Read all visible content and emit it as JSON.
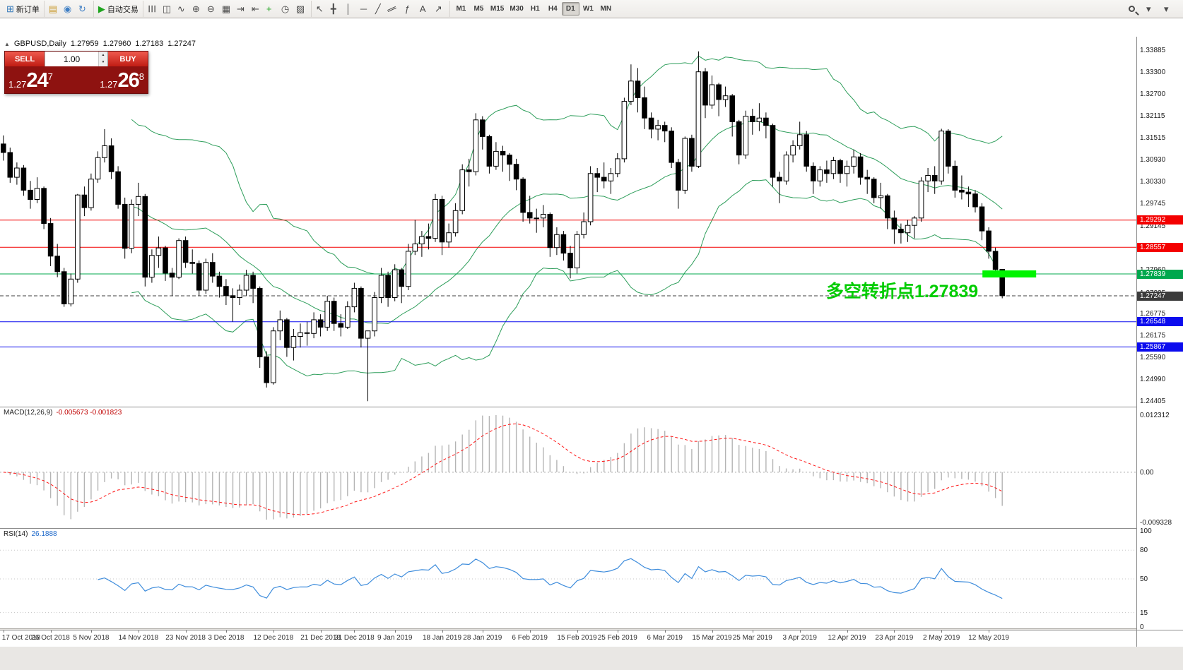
{
  "colors": {
    "bull_candle": "#ffffff",
    "bear_candle": "#000000",
    "candle_outline": "#000000",
    "bollinger": "#2e9e5b",
    "macd_histogram": "#b4b4b4",
    "macd_signal": "#ff1414",
    "rsi_line": "#3f8ddc",
    "resistance_line": "#f40000",
    "support_line": "#0c0cee",
    "pivot_line": "#00a84e",
    "bid_line": "#3c3c3c",
    "highlight_rect": "#00f400",
    "annotation_green": "#00cc00"
  },
  "toolbar": {
    "groups": [
      {
        "items": [
          {
            "name": "new-order-button",
            "glyph": "⊞",
            "color": "#2f76b8",
            "label": "新订单"
          }
        ]
      },
      {
        "items": [
          {
            "name": "charts-dropdown-button",
            "glyph": "▤",
            "color": "#c99a2e"
          },
          {
            "name": "profiles-button",
            "glyph": "◉",
            "color": "#3f7fc4"
          },
          {
            "name": "refresh-button",
            "glyph": "↻",
            "color": "#3f7fc4"
          }
        ]
      },
      {
        "items": [
          {
            "name": "autotrading-button",
            "glyph": "▶",
            "color": "#1fa51f",
            "label": "自动交易"
          }
        ]
      },
      {
        "items": [
          {
            "name": "bar-chart-button",
            "glyph": "☰",
            "rot": "rot90"
          },
          {
            "name": "candlestick-button",
            "glyph": "◫"
          },
          {
            "name": "line-chart-button",
            "glyph": "∿"
          },
          {
            "name": "zoom-in-button",
            "glyph": "⊕"
          },
          {
            "name": "zoom-out-button",
            "glyph": "⊖"
          },
          {
            "name": "tile-windows-button",
            "glyph": "▦"
          },
          {
            "name": "auto-scroll-button",
            "glyph": "⇥"
          },
          {
            "name": "chart-shift-button",
            "glyph": "⇤"
          },
          {
            "name": "indicators-button",
            "glyph": "+",
            "color": "#1fa51f"
          },
          {
            "name": "periods-button",
            "glyph": "◷"
          },
          {
            "name": "templates-button",
            "glyph": "▨"
          }
        ]
      },
      {
        "items": [
          {
            "name": "cursor-button",
            "glyph": "↖"
          },
          {
            "name": "crosshair-button",
            "glyph": "╋"
          },
          {
            "name": "vertical-line-button",
            "glyph": "│"
          },
          {
            "name": "horizontal-line-button",
            "glyph": "─"
          },
          {
            "name": "trendline-button",
            "glyph": "╱"
          },
          {
            "name": "channel-button",
            "glyph": "∥",
            "rot": "rot65"
          },
          {
            "name": "fibonacci-button",
            "glyph": "ƒ"
          },
          {
            "name": "text-button",
            "glyph": "A"
          },
          {
            "name": "arrows-button",
            "glyph": "↗"
          }
        ]
      }
    ],
    "timeframes": [
      "M1",
      "M5",
      "M15",
      "M30",
      "H1",
      "H4",
      "D1",
      "W1",
      "MN"
    ],
    "active_timeframe": "D1",
    "right_items": [
      {
        "name": "search-button",
        "glyph": "mag"
      },
      {
        "name": "toolbar-options-button",
        "glyph": "▾"
      },
      {
        "name": "window-menu-button",
        "glyph": "▾"
      }
    ]
  },
  "chart_header": {
    "collapse_glyph": "▲",
    "symbol": "GBPUSD,Daily",
    "open": "1.27959",
    "high": "1.27960",
    "low": "1.27183",
    "close": "1.27247"
  },
  "trade_panel": {
    "sell_label": "SELL",
    "buy_label": "BUY",
    "volume": "1.00",
    "spin_up": "▲",
    "spin_down": "▼",
    "sell_price": {
      "small": "1.27",
      "big": "24",
      "sup": "7"
    },
    "buy_price": {
      "small": "1.27",
      "big": "26",
      "sup": "8"
    }
  },
  "annotation": {
    "text": "多空转折点1.27839"
  },
  "highlight_rect": {
    "price": 1.27839,
    "width": 76,
    "height": 10
  },
  "hlines": [
    {
      "name": "resistance-line-1",
      "price": 1.29292,
      "label": "1.29292",
      "color": "#f40000",
      "dashed": false
    },
    {
      "name": "resistance-line-2",
      "price": 1.28557,
      "label": "1.28557",
      "color": "#f40000",
      "dashed": false
    },
    {
      "name": "pivot-line",
      "price": 1.27839,
      "label": "1.27839",
      "color": "#00a84e",
      "dashed": false
    },
    {
      "name": "bid-price-line",
      "price": 1.27247,
      "label": "1.27247",
      "color": "#3c3c3c",
      "dashed": true
    },
    {
      "name": "support-line-1",
      "price": 1.26548,
      "label": "1.26548",
      "color": "#0c0cee",
      "dashed": false
    },
    {
      "name": "support-line-2",
      "price": 1.25867,
      "label": "1.25867",
      "color": "#0c0cee",
      "dashed": false
    }
  ],
  "price_axis": {
    "labels": [
      "1.33885",
      "1.33300",
      "1.32700",
      "1.32115",
      "1.31515",
      "1.30930",
      "1.30330",
      "1.29745",
      "1.29145",
      "1.27960",
      "1.27325",
      "1.26775",
      "1.26175",
      "1.25590",
      "1.24990",
      "1.24405"
    ]
  },
  "macd_pane": {
    "title": "MACD(12,26,9)",
    "values": "-0.005673 -0.001823",
    "axis_top": "0.012312",
    "axis_zero": "0.00",
    "axis_bottom": "-0.009328"
  },
  "rsi_pane": {
    "title": "RSI(14)",
    "value": "26.1888",
    "levels": [
      {
        "v": 100,
        "label": "100"
      },
      {
        "v": 80,
        "label": "80"
      },
      {
        "v": 50,
        "label": "50"
      },
      {
        "v": 15,
        "label": "15"
      },
      {
        "v": 0,
        "label": "0"
      }
    ]
  },
  "time_axis": {
    "labels": [
      {
        "label": "17 Oct 2018",
        "i": 0
      },
      {
        "label": "26 Oct 2018",
        "i": 7
      },
      {
        "label": "5 Nov 2018",
        "i": 13
      },
      {
        "label": "14 Nov 2018",
        "i": 20
      },
      {
        "label": "23 Nov 2018",
        "i": 27
      },
      {
        "label": "3 Dec 2018",
        "i": 33
      },
      {
        "label": "12 Dec 2018",
        "i": 40
      },
      {
        "label": "21 Dec 2018",
        "i": 47
      },
      {
        "label": "31 Dec 2018",
        "i": 52
      },
      {
        "label": "9 Jan 2019",
        "i": 58
      },
      {
        "label": "18 Jan 2019",
        "i": 65
      },
      {
        "label": "28 Jan 2019",
        "i": 71
      },
      {
        "label": "6 Feb 2019",
        "i": 78
      },
      {
        "label": "15 Feb 2019",
        "i": 85
      },
      {
        "label": "25 Feb 2019",
        "i": 91
      },
      {
        "label": "6 Mar 2019",
        "i": 98
      },
      {
        "label": "15 Mar 2019",
        "i": 105
      },
      {
        "label": "25 Mar 2019",
        "i": 111
      },
      {
        "label": "3 Apr 2019",
        "i": 118
      },
      {
        "label": "12 Apr 2019",
        "i": 125
      },
      {
        "label": "23 Apr 2019",
        "i": 132
      },
      {
        "label": "2 May 2019",
        "i": 139
      },
      {
        "label": "12 May 2019",
        "i": 146
      }
    ]
  },
  "chart_data": {
    "type": "candlestick",
    "symbol": "GBPUSD",
    "timeframe": "Daily",
    "indicators": {
      "bollinger": {
        "period": 20,
        "deviation": 2
      },
      "macd": {
        "fast": 12,
        "slow": 26,
        "signal": 9,
        "value": -0.005673,
        "signal_value": -0.001823
      },
      "rsi": {
        "period": 14,
        "value": 26.1888
      }
    },
    "ohlc": [
      [
        1.3135,
        1.3158,
        1.309,
        1.3112
      ],
      [
        1.3112,
        1.3125,
        1.303,
        1.3045
      ],
      [
        1.3045,
        1.3085,
        1.3025,
        1.307
      ],
      [
        1.307,
        1.3078,
        1.2995,
        1.301
      ],
      [
        1.301,
        1.3035,
        1.296,
        1.2985
      ],
      [
        1.2985,
        1.3045,
        1.2975,
        1.3015
      ],
      [
        1.3015,
        1.302,
        1.2905,
        1.292
      ],
      [
        1.292,
        1.2935,
        1.2805,
        1.2832
      ],
      [
        1.2832,
        1.2865,
        1.2775,
        1.279
      ],
      [
        1.279,
        1.28,
        1.2695,
        1.2703
      ],
      [
        1.2703,
        1.2785,
        1.2696,
        1.277
      ],
      [
        1.277,
        1.3,
        1.276,
        1.2997
      ],
      [
        1.2997,
        1.302,
        1.294,
        1.2963
      ],
      [
        1.2963,
        1.3055,
        1.2955,
        1.304
      ],
      [
        1.304,
        1.3115,
        1.303,
        1.3098
      ],
      [
        1.3098,
        1.3175,
        1.3085,
        1.313
      ],
      [
        1.313,
        1.315,
        1.304,
        1.306
      ],
      [
        1.306,
        1.3075,
        1.296,
        1.2972
      ],
      [
        1.2972,
        1.299,
        1.2825,
        1.2853
      ],
      [
        1.2853,
        1.2985,
        1.284,
        1.2972
      ],
      [
        1.2972,
        1.303,
        1.294,
        1.2993
      ],
      [
        1.2993,
        1.3,
        1.275,
        1.2775
      ],
      [
        1.2775,
        1.285,
        1.276,
        1.2834
      ],
      [
        1.2834,
        1.2885,
        1.28,
        1.2854
      ],
      [
        1.2854,
        1.286,
        1.2765,
        1.2786
      ],
      [
        1.2786,
        1.28,
        1.2725,
        1.2775
      ],
      [
        1.2775,
        1.288,
        1.277,
        1.2874
      ],
      [
        1.2874,
        1.2885,
        1.28,
        1.2815
      ],
      [
        1.2815,
        1.285,
        1.2785,
        1.2812
      ],
      [
        1.2812,
        1.282,
        1.2725,
        1.274
      ],
      [
        1.274,
        1.2825,
        1.273,
        1.2815
      ],
      [
        1.2815,
        1.284,
        1.276,
        1.2778
      ],
      [
        1.2778,
        1.279,
        1.272,
        1.275
      ],
      [
        1.275,
        1.277,
        1.27,
        1.2725
      ],
      [
        1.2725,
        1.2745,
        1.2655,
        1.272
      ],
      [
        1.272,
        1.2755,
        1.27,
        1.274
      ],
      [
        1.274,
        1.2795,
        1.2725,
        1.278
      ],
      [
        1.278,
        1.279,
        1.2705,
        1.2745
      ],
      [
        1.2745,
        1.275,
        1.253,
        1.256
      ],
      [
        1.256,
        1.2575,
        1.2477,
        1.249
      ],
      [
        1.249,
        1.264,
        1.2485,
        1.263
      ],
      [
        1.263,
        1.2685,
        1.2605,
        1.266
      ],
      [
        1.266,
        1.2665,
        1.256,
        1.2585
      ],
      [
        1.2585,
        1.2635,
        1.255,
        1.2615
      ],
      [
        1.2615,
        1.265,
        1.2585,
        1.2625
      ],
      [
        1.2625,
        1.2655,
        1.259,
        1.2623
      ],
      [
        1.2623,
        1.268,
        1.261,
        1.266
      ],
      [
        1.266,
        1.2675,
        1.2615,
        1.264
      ],
      [
        1.264,
        1.2725,
        1.263,
        1.271
      ],
      [
        1.271,
        1.272,
        1.263,
        1.265
      ],
      [
        1.265,
        1.2675,
        1.2615,
        1.264
      ],
      [
        1.264,
        1.271,
        1.2635,
        1.2695
      ],
      [
        1.2695,
        1.276,
        1.268,
        1.2745
      ],
      [
        1.2745,
        1.275,
        1.2585,
        1.261
      ],
      [
        1.261,
        1.2615,
        1.244,
        1.263
      ],
      [
        1.263,
        1.2735,
        1.2615,
        1.272
      ],
      [
        1.272,
        1.28,
        1.2705,
        1.278
      ],
      [
        1.278,
        1.279,
        1.2695,
        1.272
      ],
      [
        1.272,
        1.281,
        1.271,
        1.2795
      ],
      [
        1.2795,
        1.28,
        1.2705,
        1.275
      ],
      [
        1.275,
        1.2865,
        1.274,
        1.2845
      ],
      [
        1.2845,
        1.293,
        1.2835,
        1.2865
      ],
      [
        1.2865,
        1.29,
        1.283,
        1.2885
      ],
      [
        1.2885,
        1.292,
        1.285,
        1.288
      ],
      [
        1.288,
        1.3,
        1.287,
        1.2985
      ],
      [
        1.2985,
        1.2995,
        1.2835,
        1.287
      ],
      [
        1.287,
        1.292,
        1.2855,
        1.2895
      ],
      [
        1.2895,
        1.2975,
        1.2885,
        1.2955
      ],
      [
        1.2955,
        1.308,
        1.2945,
        1.3065
      ],
      [
        1.3065,
        1.3095,
        1.302,
        1.306
      ],
      [
        1.306,
        1.3218,
        1.305,
        1.32
      ],
      [
        1.32,
        1.321,
        1.312,
        1.3155
      ],
      [
        1.3155,
        1.316,
        1.3055,
        1.3075
      ],
      [
        1.3075,
        1.314,
        1.3065,
        1.3115
      ],
      [
        1.3115,
        1.313,
        1.306,
        1.3105
      ],
      [
        1.3105,
        1.311,
        1.3035,
        1.308
      ],
      [
        1.308,
        1.3095,
        1.301,
        1.304
      ],
      [
        1.304,
        1.3045,
        1.2925,
        1.295
      ],
      [
        1.295,
        1.2995,
        1.292,
        1.2935
      ],
      [
        1.2935,
        1.296,
        1.2895,
        1.2935
      ],
      [
        1.2935,
        1.297,
        1.291,
        1.2945
      ],
      [
        1.2945,
        1.295,
        1.283,
        1.2855
      ],
      [
        1.2855,
        1.291,
        1.2835,
        1.289
      ],
      [
        1.289,
        1.29,
        1.282,
        1.284
      ],
      [
        1.284,
        1.286,
        1.2772,
        1.28
      ],
      [
        1.28,
        1.29,
        1.2785,
        1.289
      ],
      [
        1.289,
        1.295,
        1.288,
        1.2925
      ],
      [
        1.2925,
        1.3075,
        1.2915,
        1.3055
      ],
      [
        1.3055,
        1.307,
        1.3005,
        1.3045
      ],
      [
        1.3045,
        1.3085,
        1.3015,
        1.3035
      ],
      [
        1.3035,
        1.307,
        1.3,
        1.3055
      ],
      [
        1.3055,
        1.311,
        1.3045,
        1.3095
      ],
      [
        1.3095,
        1.326,
        1.3085,
        1.325
      ],
      [
        1.325,
        1.335,
        1.324,
        1.3305
      ],
      [
        1.3305,
        1.334,
        1.322,
        1.326
      ],
      [
        1.326,
        1.329,
        1.3175,
        1.3205
      ],
      [
        1.3205,
        1.322,
        1.315,
        1.3175
      ],
      [
        1.3175,
        1.32,
        1.3145,
        1.3185
      ],
      [
        1.3185,
        1.3195,
        1.314,
        1.317
      ],
      [
        1.317,
        1.318,
        1.307,
        1.3085
      ],
      [
        1.3085,
        1.3095,
        1.296,
        1.301
      ],
      [
        1.301,
        1.3155,
        1.3,
        1.315
      ],
      [
        1.315,
        1.316,
        1.306,
        1.3075
      ],
      [
        1.3075,
        1.3385,
        1.307,
        1.333
      ],
      [
        1.333,
        1.334,
        1.3205,
        1.324
      ],
      [
        1.324,
        1.332,
        1.323,
        1.3295
      ],
      [
        1.3295,
        1.33,
        1.321,
        1.3255
      ],
      [
        1.3255,
        1.329,
        1.3235,
        1.3265
      ],
      [
        1.3265,
        1.327,
        1.3155,
        1.3195
      ],
      [
        1.3195,
        1.32,
        1.308,
        1.3105
      ],
      [
        1.3105,
        1.3225,
        1.3095,
        1.321
      ],
      [
        1.321,
        1.323,
        1.316,
        1.3195
      ],
      [
        1.3195,
        1.3245,
        1.317,
        1.3205
      ],
      [
        1.3205,
        1.322,
        1.315,
        1.3185
      ],
      [
        1.3185,
        1.319,
        1.302,
        1.3045
      ],
      [
        1.3045,
        1.306,
        1.2975,
        1.3035
      ],
      [
        1.3035,
        1.3115,
        1.3025,
        1.3105
      ],
      [
        1.3105,
        1.3145,
        1.3085,
        1.313
      ],
      [
        1.313,
        1.3195,
        1.312,
        1.316
      ],
      [
        1.316,
        1.317,
        1.306,
        1.3075
      ],
      [
        1.3075,
        1.3085,
        1.3,
        1.3035
      ],
      [
        1.3035,
        1.3075,
        1.302,
        1.3065
      ],
      [
        1.3065,
        1.309,
        1.303,
        1.3055
      ],
      [
        1.3055,
        1.31,
        1.304,
        1.309
      ],
      [
        1.309,
        1.3095,
        1.303,
        1.3055
      ],
      [
        1.3055,
        1.309,
        1.302,
        1.3075
      ],
      [
        1.3075,
        1.312,
        1.3055,
        1.31
      ],
      [
        1.31,
        1.311,
        1.3025,
        1.3045
      ],
      [
        1.3045,
        1.3065,
        1.3,
        1.304
      ],
      [
        1.304,
        1.3045,
        1.2975,
        1.299
      ],
      [
        1.299,
        1.303,
        1.296,
        1.2995
      ],
      [
        1.2995,
        1.3,
        1.2905,
        1.2935
      ],
      [
        1.2935,
        1.2955,
        1.2865,
        1.2905
      ],
      [
        1.2905,
        1.292,
        1.2866,
        1.2895
      ],
      [
        1.2895,
        1.293,
        1.287,
        1.2915
      ],
      [
        1.2915,
        1.294,
        1.288,
        1.2935
      ],
      [
        1.2935,
        1.3045,
        1.2925,
        1.3035
      ],
      [
        1.3035,
        1.307,
        1.3005,
        1.305
      ],
      [
        1.305,
        1.3075,
        1.3,
        1.3035
      ],
      [
        1.3035,
        1.3176,
        1.3025,
        1.317
      ],
      [
        1.317,
        1.3175,
        1.3055,
        1.3075
      ],
      [
        1.3075,
        1.309,
        1.299,
        1.301
      ],
      [
        1.301,
        1.305,
        1.2985,
        1.3005
      ],
      [
        1.3005,
        1.302,
        1.2965,
        1.3
      ],
      [
        1.3,
        1.301,
        1.295,
        1.2965
      ],
      [
        1.2965,
        1.2975,
        1.2875,
        1.29
      ],
      [
        1.29,
        1.291,
        1.2825,
        1.2845
      ],
      [
        1.2845,
        1.2855,
        1.278,
        1.2796
      ],
      [
        1.2796,
        1.2796,
        1.2718,
        1.2725
      ]
    ]
  }
}
